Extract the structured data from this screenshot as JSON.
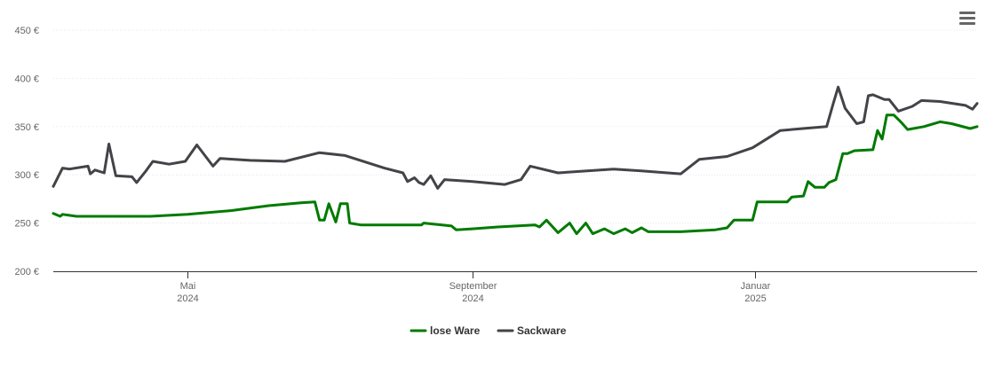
{
  "chart_data": {
    "type": "line",
    "title": "",
    "xlabel": "",
    "ylabel": "",
    "ylim": [
      200,
      450
    ],
    "yticks": [
      200,
      250,
      300,
      350,
      400,
      450
    ],
    "y_unit": "€",
    "xlim": [
      "2024-03-04",
      "2025-04-07"
    ],
    "xticks": [
      {
        "date": "2024-05-01",
        "label_month": "Mai",
        "label_year": "2024"
      },
      {
        "date": "2024-09-01",
        "label_month": "September",
        "label_year": "2024"
      },
      {
        "date": "2025-01-01",
        "label_month": "Januar",
        "label_year": "2025"
      }
    ],
    "grid": true,
    "legend_position": "bottom-center",
    "series": [
      {
        "name": "lose Ware",
        "color": "#007a00",
        "points": [
          [
            "2024-03-04",
            260
          ],
          [
            "2024-03-07",
            257
          ],
          [
            "2024-03-08",
            259
          ],
          [
            "2024-03-11",
            258
          ],
          [
            "2024-03-14",
            257
          ],
          [
            "2024-04-15",
            257
          ],
          [
            "2024-05-01",
            259
          ],
          [
            "2024-05-20",
            263
          ],
          [
            "2024-06-05",
            268
          ],
          [
            "2024-06-19",
            271
          ],
          [
            "2024-06-25",
            272
          ],
          [
            "2024-06-27",
            253
          ],
          [
            "2024-06-29",
            253
          ],
          [
            "2024-07-01",
            270
          ],
          [
            "2024-07-04",
            251
          ],
          [
            "2024-07-06",
            270
          ],
          [
            "2024-07-09",
            270
          ],
          [
            "2024-07-10",
            250
          ],
          [
            "2024-07-15",
            248
          ],
          [
            "2024-08-10",
            248
          ],
          [
            "2024-08-11",
            250
          ],
          [
            "2024-08-23",
            247
          ],
          [
            "2024-08-25",
            243
          ],
          [
            "2024-09-01",
            244
          ],
          [
            "2024-09-12",
            246
          ],
          [
            "2024-09-28",
            248
          ],
          [
            "2024-09-30",
            246
          ],
          [
            "2024-10-03",
            253
          ],
          [
            "2024-10-08",
            240
          ],
          [
            "2024-10-13",
            250
          ],
          [
            "2024-10-16",
            239
          ],
          [
            "2024-10-20",
            250
          ],
          [
            "2024-10-23",
            239
          ],
          [
            "2024-10-28",
            244
          ],
          [
            "2024-11-01",
            239
          ],
          [
            "2024-11-06",
            244
          ],
          [
            "2024-11-09",
            240
          ],
          [
            "2024-11-13",
            245
          ],
          [
            "2024-11-16",
            241
          ],
          [
            "2024-11-30",
            241
          ],
          [
            "2024-12-15",
            243
          ],
          [
            "2024-12-20",
            245
          ],
          [
            "2024-12-23",
            253
          ],
          [
            "2024-12-30",
            253
          ],
          [
            "2024-12-31",
            253
          ],
          [
            "2025-01-02",
            272
          ],
          [
            "2025-01-15",
            272
          ],
          [
            "2025-01-17",
            277
          ],
          [
            "2025-01-22",
            278
          ],
          [
            "2025-01-24",
            293
          ],
          [
            "2025-01-27",
            287
          ],
          [
            "2025-01-31",
            287
          ],
          [
            "2025-02-02",
            292
          ],
          [
            "2025-02-05",
            295
          ],
          [
            "2025-02-08",
            322
          ],
          [
            "2025-02-10",
            322
          ],
          [
            "2025-02-13",
            325
          ],
          [
            "2025-02-21",
            326
          ],
          [
            "2025-02-23",
            346
          ],
          [
            "2025-02-25",
            337
          ],
          [
            "2025-02-27",
            362
          ],
          [
            "2025-03-02",
            362
          ],
          [
            "2025-03-05",
            355
          ],
          [
            "2025-03-08",
            347
          ],
          [
            "2025-03-15",
            350
          ],
          [
            "2025-03-22",
            355
          ],
          [
            "2025-03-27",
            353
          ],
          [
            "2025-04-04",
            348
          ],
          [
            "2025-04-07",
            350
          ]
        ]
      },
      {
        "name": "Sackware",
        "color": "#434348",
        "points": [
          [
            "2024-03-04",
            288
          ],
          [
            "2024-03-08",
            307
          ],
          [
            "2024-03-11",
            306
          ],
          [
            "2024-03-19",
            309
          ],
          [
            "2024-03-20",
            301
          ],
          [
            "2024-03-22",
            305
          ],
          [
            "2024-03-26",
            302
          ],
          [
            "2024-03-28",
            332
          ],
          [
            "2024-03-31",
            299
          ],
          [
            "2024-04-07",
            298
          ],
          [
            "2024-04-09",
            292
          ],
          [
            "2024-04-13",
            304
          ],
          [
            "2024-04-16",
            314
          ],
          [
            "2024-04-23",
            311
          ],
          [
            "2024-04-30",
            314
          ],
          [
            "2024-05-05",
            331
          ],
          [
            "2024-05-12",
            309
          ],
          [
            "2024-05-15",
            317
          ],
          [
            "2024-05-28",
            315
          ],
          [
            "2024-06-12",
            314
          ],
          [
            "2024-06-27",
            323
          ],
          [
            "2024-07-08",
            320
          ],
          [
            "2024-07-25",
            307
          ],
          [
            "2024-08-02",
            302
          ],
          [
            "2024-08-04",
            293
          ],
          [
            "2024-08-07",
            297
          ],
          [
            "2024-08-09",
            292
          ],
          [
            "2024-08-11",
            290
          ],
          [
            "2024-08-14",
            299
          ],
          [
            "2024-08-17",
            286
          ],
          [
            "2024-08-20",
            295
          ],
          [
            "2024-09-01",
            293
          ],
          [
            "2024-09-15",
            290
          ],
          [
            "2024-09-22",
            295
          ],
          [
            "2024-09-26",
            309
          ],
          [
            "2024-10-08",
            302
          ],
          [
            "2024-11-01",
            306
          ],
          [
            "2024-11-13",
            304
          ],
          [
            "2024-11-30",
            301
          ],
          [
            "2024-12-08",
            316
          ],
          [
            "2024-12-20",
            319
          ],
          [
            "2024-12-31",
            328
          ],
          [
            "2025-01-12",
            346
          ],
          [
            "2025-02-01",
            350
          ],
          [
            "2025-02-04",
            375
          ],
          [
            "2025-02-06",
            391
          ],
          [
            "2025-02-09",
            369
          ],
          [
            "2025-02-14",
            353
          ],
          [
            "2025-02-17",
            355
          ],
          [
            "2025-02-19",
            382
          ],
          [
            "2025-02-21",
            383
          ],
          [
            "2025-02-26",
            378
          ],
          [
            "2025-02-28",
            378
          ],
          [
            "2025-03-04",
            366
          ],
          [
            "2025-03-10",
            371
          ],
          [
            "2025-03-14",
            377
          ],
          [
            "2025-03-22",
            376
          ],
          [
            "2025-04-02",
            372
          ],
          [
            "2025-04-05",
            368
          ],
          [
            "2025-04-07",
            374
          ]
        ]
      }
    ]
  },
  "menu": {
    "icon": "hamburger-menu-icon"
  }
}
